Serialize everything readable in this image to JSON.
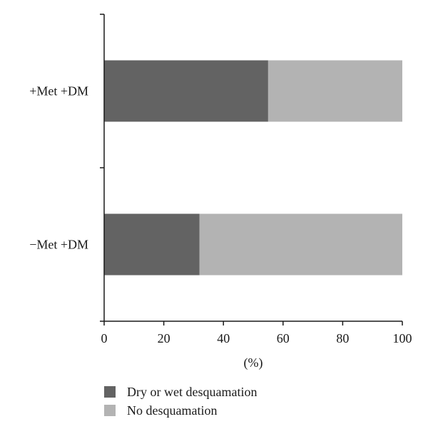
{
  "chart_data": {
    "type": "bar",
    "orientation": "horizontal",
    "stacked": true,
    "title": "",
    "xlabel": "(%)",
    "ylabel": "",
    "xlim": [
      0,
      100
    ],
    "x_ticks": [
      0,
      20,
      40,
      60,
      80,
      100
    ],
    "grid": false,
    "legend_position": "bottom",
    "categories": [
      "+Met +DM",
      "−Met +DM"
    ],
    "series": [
      {
        "name": "Dry or wet desquamation",
        "color": "#636363",
        "values": [
          55,
          32
        ]
      },
      {
        "name": "No desquamation",
        "color": "#b3b3b3",
        "values": [
          45,
          68
        ]
      }
    ]
  }
}
